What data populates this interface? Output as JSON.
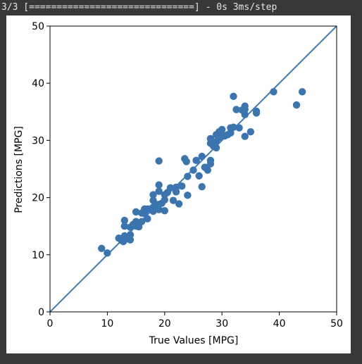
{
  "console": {
    "output_line": "3/3 [==============================] - 0s 3ms/step"
  },
  "chart_data": {
    "type": "scatter",
    "title": "",
    "xlabel": "True Values [MPG]",
    "ylabel": "Predictions [MPG]",
    "xlim": [
      0,
      50
    ],
    "ylim": [
      0,
      50
    ],
    "xticks": [
      "0",
      "10",
      "20",
      "30",
      "40",
      "50"
    ],
    "yticks": [
      "0",
      "10",
      "20",
      "30",
      "40",
      "50"
    ],
    "grid": false,
    "reference_line": {
      "from": [
        0,
        0
      ],
      "to": [
        50,
        50
      ],
      "color": "#3a7ab7"
    },
    "marker_color": "#3a75b0",
    "points": [
      [
        9.0,
        11.1
      ],
      [
        10.0,
        10.3
      ],
      [
        12.0,
        12.9
      ],
      [
        12.5,
        12.5
      ],
      [
        12.8,
        12.3
      ],
      [
        13.0,
        13.3
      ],
      [
        13.0,
        12.6
      ],
      [
        13.0,
        15.0
      ],
      [
        13.0,
        16.0
      ],
      [
        13.5,
        13.0
      ],
      [
        14.0,
        12.6
      ],
      [
        14.0,
        13.5
      ],
      [
        14.0,
        14.8
      ],
      [
        14.5,
        15.3
      ],
      [
        15.0,
        15.0
      ],
      [
        15.0,
        15.8
      ],
      [
        15.0,
        17.5
      ],
      [
        15.5,
        14.9
      ],
      [
        16.0,
        15.8
      ],
      [
        16.0,
        17.3
      ],
      [
        16.5,
        17.2
      ],
      [
        16.5,
        18.0
      ],
      [
        17.0,
        16.3
      ],
      [
        17.0,
        18.0
      ],
      [
        17.5,
        18.0
      ],
      [
        18.0,
        17.6
      ],
      [
        18.0,
        18.3
      ],
      [
        18.0,
        19.5
      ],
      [
        18.0,
        20.5
      ],
      [
        18.5,
        18.0
      ],
      [
        18.5,
        18.8
      ],
      [
        19.0,
        17.9
      ],
      [
        19.0,
        18.8
      ],
      [
        19.0,
        21.1
      ],
      [
        19.0,
        22.2
      ],
      [
        19.0,
        26.4
      ],
      [
        19.5,
        19.0
      ],
      [
        20.0,
        17.7
      ],
      [
        20.0,
        19.6
      ],
      [
        20.0,
        20.5
      ],
      [
        20.5,
        20.9
      ],
      [
        21.0,
        21.7
      ],
      [
        21.5,
        19.5
      ],
      [
        22.0,
        21.0
      ],
      [
        22.0,
        21.8
      ],
      [
        22.5,
        18.9
      ],
      [
        23.0,
        22.0
      ],
      [
        23.5,
        26.8
      ],
      [
        23.8,
        26.3
      ],
      [
        24.0,
        20.4
      ],
      [
        24.0,
        23.7
      ],
      [
        25.0,
        24.8
      ],
      [
        25.5,
        26.5
      ],
      [
        26.0,
        23.8
      ],
      [
        26.5,
        27.2
      ],
      [
        26.5,
        21.9
      ],
      [
        27.0,
        25.3
      ],
      [
        27.5,
        24.8
      ],
      [
        28.0,
        25.9
      ],
      [
        28.0,
        26.5
      ],
      [
        28.0,
        29.5
      ],
      [
        28.0,
        30.3
      ],
      [
        28.5,
        29.0
      ],
      [
        29.0,
        28.7
      ],
      [
        29.0,
        29.8
      ],
      [
        29.0,
        31.0
      ],
      [
        29.5,
        30.5
      ],
      [
        29.5,
        31.5
      ],
      [
        30.0,
        31.9
      ],
      [
        30.5,
        30.8
      ],
      [
        31.0,
        31.0
      ],
      [
        31.5,
        31.3
      ],
      [
        31.5,
        32.2
      ],
      [
        32.0,
        37.7
      ],
      [
        32.0,
        32.3
      ],
      [
        32.5,
        35.4
      ],
      [
        33.0,
        32.2
      ],
      [
        33.5,
        35.3
      ],
      [
        34.0,
        36.0
      ],
      [
        34.0,
        35.4
      ],
      [
        34.0,
        34.5
      ],
      [
        34.0,
        30.7
      ],
      [
        35.0,
        31.5
      ],
      [
        36.0,
        34.8
      ],
      [
        36.0,
        35.1
      ],
      [
        39.0,
        38.5
      ],
      [
        43.0,
        36.2
      ],
      [
        44.0,
        38.5
      ]
    ]
  }
}
